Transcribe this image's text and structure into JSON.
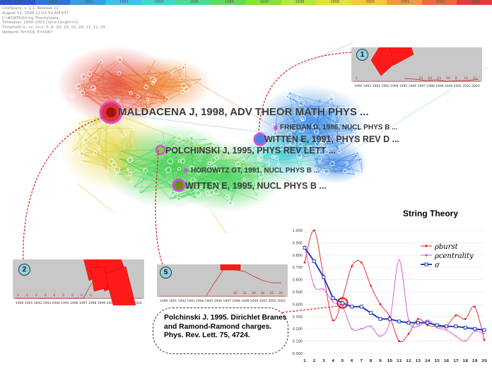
{
  "timeline": {
    "years": [
      "1990",
      "1991",
      "1992",
      "1993",
      "1994",
      "1995",
      "1996",
      "1997",
      "1998",
      "1999",
      "2000",
      "2001",
      "2002",
      "2003"
    ],
    "colors": [
      "#2b57c8",
      "#2f74d8",
      "#3a9ae6",
      "#3fc1ea",
      "#43d7c8",
      "#4cdb95",
      "#5fdc5a",
      "#86e23b",
      "#b5e63a",
      "#dfe23b",
      "#f2c93b",
      "#f29a3b",
      "#ea6a3b",
      "#e33b3b"
    ]
  },
  "info_lines": [
    "CiteSpace, v. 2.1. Release 12",
    "August 31, 2006 12:02:50 AM EST",
    "C:\\#DATA\\String Theory\\data",
    "Timespan: 1990-2003 (Slice Length=1)",
    "Threshold (c, cc, ccv): 5, 8, 20; 15, 15, 20; 12, 12, 20",
    "Network: N=554, E=5987"
  ],
  "network_labels": {
    "maldacena": "MALDACENA J,  1998,  ADV THEOR MATH PHYS ...",
    "friedan": "FRIEDAN D,  1986,  NUCL PHYS B ...",
    "witten1991": "WITTEN E,  1991,  PHYS REV D ...",
    "polchinski": "POLCHINSKI J,  1995,  PHYS REV LETT ...",
    "horowitz": "HOROWITZ GT,  1991,  NUCL PHYS B ...",
    "witten1995": "WITTEN E,  1995,  NUCL PHYS B ..."
  },
  "insets": {
    "inset1": {
      "badge": "1",
      "years": [
        "1990",
        "1991",
        "1992",
        "1993",
        "1994",
        "1995",
        "1996",
        "1997",
        "1998",
        "1999",
        "2000",
        "2001",
        "2002",
        "2003"
      ],
      "values": [
        "1",
        "",
        "",
        "",
        "",
        "",
        "",
        "23",
        "19",
        "13",
        "16",
        "8",
        "10",
        "11"
      ]
    },
    "inset2": {
      "badge": "2",
      "years": [
        "1990",
        "1991",
        "1992",
        "1993",
        "1994",
        "1995",
        "1996",
        "1997",
        "1998",
        "1999",
        "2000",
        "2001",
        "2002",
        "2003"
      ],
      "values": [
        "0",
        "0",
        "0",
        "0",
        "0",
        "0",
        "0",
        "0",
        "0",
        "",
        "",
        "",
        "",
        ""
      ]
    },
    "inset5": {
      "badge": "5",
      "years": [
        "1990",
        "1991",
        "1992",
        "1993",
        "1994",
        "1995",
        "1996",
        "1997",
        "1998",
        "1999",
        "2000",
        "2001",
        "2002",
        "2003"
      ],
      "values": [
        "",
        "",
        "",
        "",
        "",
        "",
        "",
        "",
        "60",
        "52",
        "39",
        "30",
        "25",
        "26"
      ]
    }
  },
  "chart_title": "String Theory",
  "chart_data": {
    "type": "line",
    "x": [
      1,
      2,
      3,
      4,
      5,
      6,
      7,
      8,
      9,
      10,
      11,
      12,
      13,
      14,
      15,
      16,
      17,
      18,
      19,
      20
    ],
    "ylim": [
      0.0,
      1.0
    ],
    "yticks": [
      "0.000",
      "0.100",
      "0.200",
      "0.300",
      "0.400",
      "0.500",
      "0.600",
      "0.700",
      "0.800",
      "0.900",
      "1.000"
    ],
    "legend_position": "top-right",
    "series": [
      {
        "name": "ρburst",
        "color": "#e02020",
        "values": [
          0.74,
          1.0,
          0.63,
          0.27,
          0.45,
          0.71,
          0.74,
          0.55,
          0.4,
          0.3,
          0.1,
          0.16,
          0.28,
          0.23,
          0.22,
          0.22,
          0.31,
          0.28,
          0.38,
          0.11
        ]
      },
      {
        "name": "ρcentrality",
        "color": "#d94fd9",
        "values": [
          0.87,
          0.55,
          0.52,
          0.42,
          0.38,
          0.2,
          0.2,
          0.22,
          0.14,
          0.26,
          0.76,
          0.27,
          0.22,
          0.27,
          0.21,
          0.19,
          0.14,
          0.1,
          0.18,
          0.16
        ]
      },
      {
        "name": "σ",
        "color": "#2040c0",
        "values": [
          0.86,
          0.75,
          0.62,
          0.45,
          0.41,
          0.38,
          0.38,
          0.33,
          0.28,
          0.28,
          0.26,
          0.25,
          0.25,
          0.25,
          0.23,
          0.22,
          0.22,
          0.21,
          0.2,
          0.19
        ]
      }
    ]
  },
  "callout": {
    "text": "Polchinski J. 1995. Dirichlet Branes and Ramond-Ramond charges. Phys. Rev. Lett. 75, 4724."
  }
}
